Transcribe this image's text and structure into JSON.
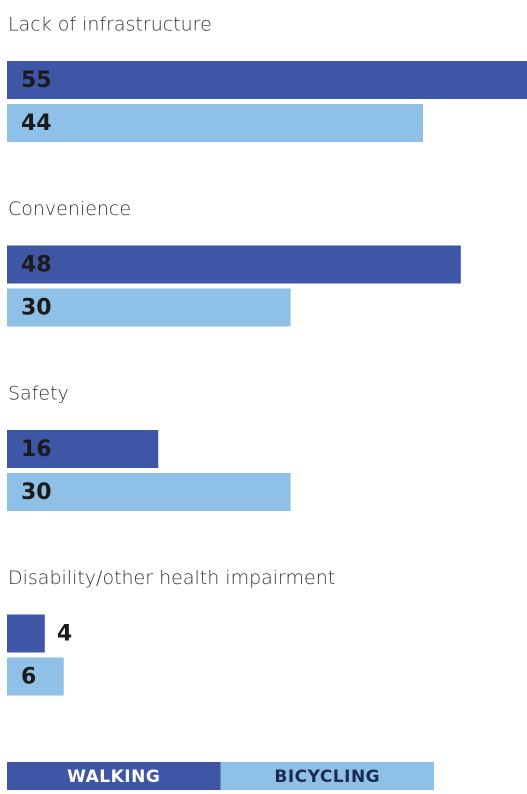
{
  "chart_data": {
    "type": "bar",
    "orientation": "horizontal",
    "categories": [
      "Lack of infrastructure",
      "Convenience",
      "Safety",
      "Disability/other health impairment"
    ],
    "series": [
      {
        "name": "WALKING",
        "color": "#3f56a6",
        "values": [
          55,
          48,
          16,
          4
        ]
      },
      {
        "name": "BICYCLING",
        "color": "#8fc0e7",
        "values": [
          44,
          30,
          30,
          6
        ]
      }
    ],
    "xlim": [
      0,
      55
    ]
  }
}
